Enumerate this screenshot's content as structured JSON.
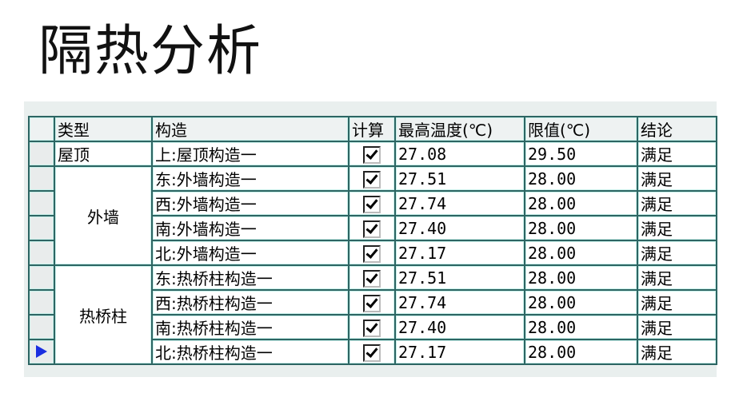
{
  "title": "隔热分析",
  "headers": {
    "type": "类型",
    "construction": "构造",
    "calc": "计算",
    "max_temp": "最高温度(℃)",
    "limit": "限值(℃)",
    "conclusion": "结论"
  },
  "groups": {
    "roof": "屋顶",
    "wall": "外墙",
    "bridge": "热桥柱"
  },
  "rows": [
    {
      "construction": "上:屋顶构造一",
      "calc": true,
      "max_temp": "27.08",
      "limit": "29.50",
      "conclusion": "满足"
    },
    {
      "construction": "东:外墙构造一",
      "calc": true,
      "max_temp": "27.51",
      "limit": "28.00",
      "conclusion": "满足"
    },
    {
      "construction": "西:外墙构造一",
      "calc": true,
      "max_temp": "27.74",
      "limit": "28.00",
      "conclusion": "满足"
    },
    {
      "construction": "南:外墙构造一",
      "calc": true,
      "max_temp": "27.40",
      "limit": "28.00",
      "conclusion": "满足"
    },
    {
      "construction": "北:外墙构造一",
      "calc": true,
      "max_temp": "27.17",
      "limit": "28.00",
      "conclusion": "满足"
    },
    {
      "construction": "东:热桥柱构造一",
      "calc": true,
      "max_temp": "27.51",
      "limit": "28.00",
      "conclusion": "满足"
    },
    {
      "construction": "西:热桥柱构造一",
      "calc": true,
      "max_temp": "27.74",
      "limit": "28.00",
      "conclusion": "满足"
    },
    {
      "construction": "南:热桥柱构造一",
      "calc": true,
      "max_temp": "27.40",
      "limit": "28.00",
      "conclusion": "满足"
    },
    {
      "construction": "北:热桥柱构造一",
      "calc": true,
      "max_temp": "27.17",
      "limit": "28.00",
      "conclusion": "满足"
    }
  ],
  "current_row_indicator": "arrow-right-icon",
  "colors": {
    "grid": "#2d6563",
    "indicator": "#1a2ee0"
  }
}
